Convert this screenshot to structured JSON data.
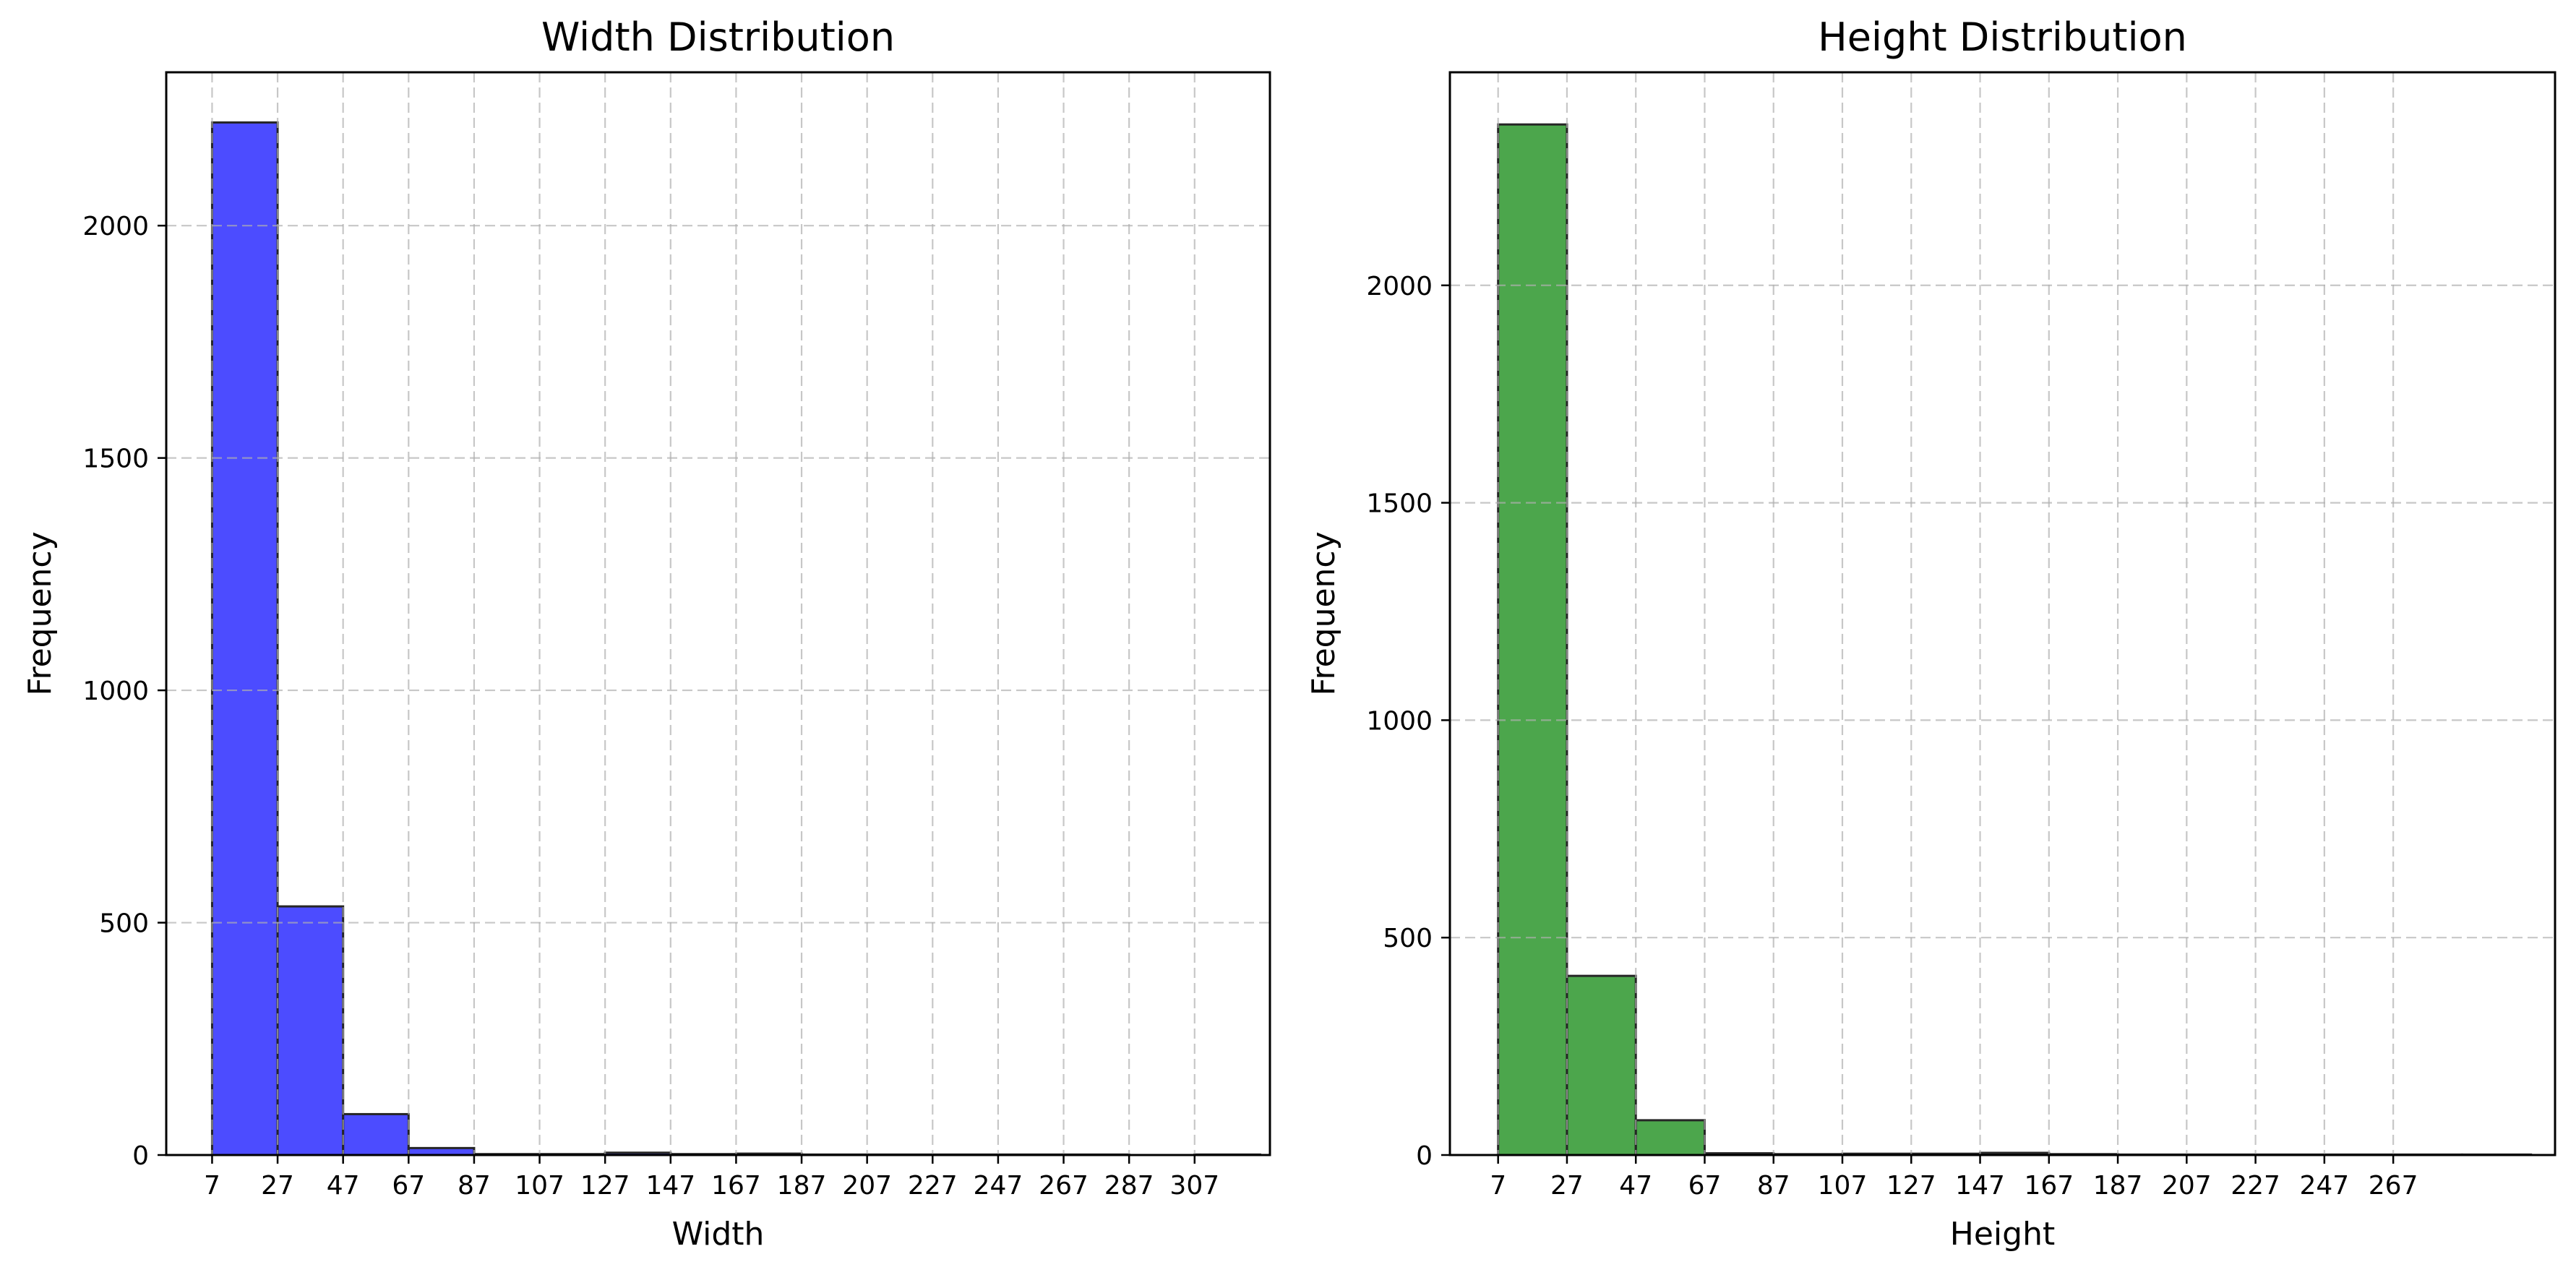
{
  "chart_data": [
    {
      "type": "bar",
      "title": "Width Distribution",
      "xlabel": "Width",
      "ylabel": "Frequency",
      "color": "#0000ff",
      "bar_opacity": 0.7,
      "bin_edges": [
        7,
        27,
        47,
        67,
        87,
        107,
        127,
        147,
        167,
        187,
        207,
        227,
        247,
        267,
        287,
        307,
        327
      ],
      "values": [
        2222,
        535,
        88,
        15,
        2,
        2,
        5,
        2,
        3,
        1,
        1,
        1,
        1,
        1,
        0,
        1
      ],
      "xlim": [
        -7,
        330
      ],
      "ylim": [
        0,
        2330
      ],
      "xticks": [
        7,
        27,
        47,
        67,
        87,
        107,
        127,
        147,
        167,
        187,
        207,
        227,
        247,
        267,
        287,
        307
      ],
      "yticks": [
        0,
        500,
        1000,
        1500,
        2000
      ],
      "grid": true
    },
    {
      "type": "bar",
      "title": "Height Distribution",
      "xlabel": "Height",
      "ylabel": "Frequency",
      "color": "#008000",
      "bar_opacity": 0.7,
      "bin_edges": [
        7,
        27,
        47,
        67,
        87,
        107,
        127,
        147,
        167,
        187,
        207,
        227,
        247,
        267,
        287,
        307
      ],
      "values": [
        2370,
        412,
        80,
        4,
        2,
        3,
        3,
        5,
        2,
        1,
        1,
        1,
        1,
        1,
        1
      ],
      "xlim": [
        -7,
        314
      ],
      "ylim": [
        0,
        2490
      ],
      "xticks": [
        7,
        27,
        47,
        67,
        87,
        107,
        127,
        147,
        167,
        187,
        207,
        227,
        247,
        267
      ],
      "yticks": [
        0,
        500,
        1000,
        1500,
        2000
      ],
      "grid": true
    }
  ]
}
